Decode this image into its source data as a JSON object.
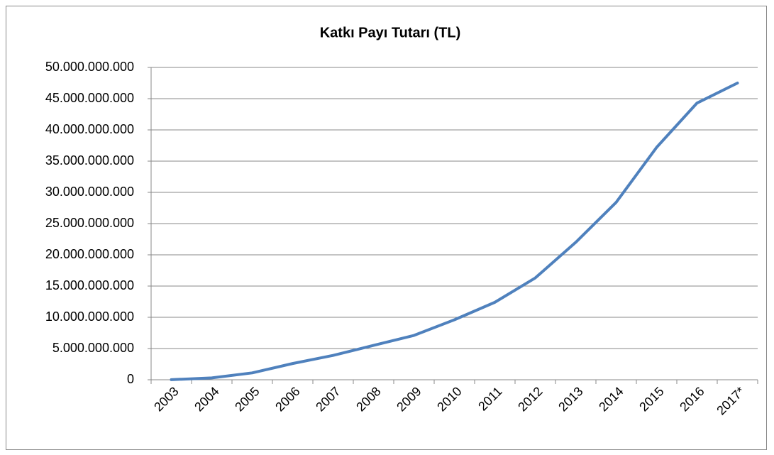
{
  "chart_data": {
    "type": "line",
    "title": "Katkı Payı Tutarı (TL)",
    "categories": [
      "2003",
      "2004",
      "2005",
      "2006",
      "2007",
      "2008",
      "2009",
      "2010",
      "2011",
      "2012",
      "2013",
      "2014",
      "2015",
      "2016",
      "2017*"
    ],
    "series": [
      {
        "name": "Katkı Payı Tutarı (TL)",
        "color": "#4f81bd",
        "values": [
          10000000,
          300000000,
          1100000000,
          2600000000,
          3900000000,
          5500000000,
          7100000000,
          9600000000,
          12400000000,
          16300000000,
          22000000000,
          28400000000,
          37200000000,
          44300000000,
          47500000000
        ]
      }
    ],
    "ylim": [
      0,
      50000000000
    ],
    "yticks": [
      0,
      {
        "value": 5000000000,
        "label": "5.000.000.000"
      },
      {
        "value": 10000000000,
        "label": "10.000.000.000"
      },
      {
        "value": 15000000000,
        "label": "15.000.000.000"
      },
      {
        "value": 20000000000,
        "label": "20.000.000.000"
      },
      {
        "value": 25000000000,
        "label": "25.000.000.000"
      },
      {
        "value": 30000000000,
        "label": "30.000.000.000"
      },
      {
        "value": 35000000000,
        "label": "35.000.000.000"
      },
      {
        "value": 40000000000,
        "label": "40.000.000.000"
      },
      {
        "value": 45000000000,
        "label": "45.000.000.000"
      },
      {
        "value": 50000000000,
        "label": "50.000.000.000"
      }
    ],
    "grid": true
  }
}
